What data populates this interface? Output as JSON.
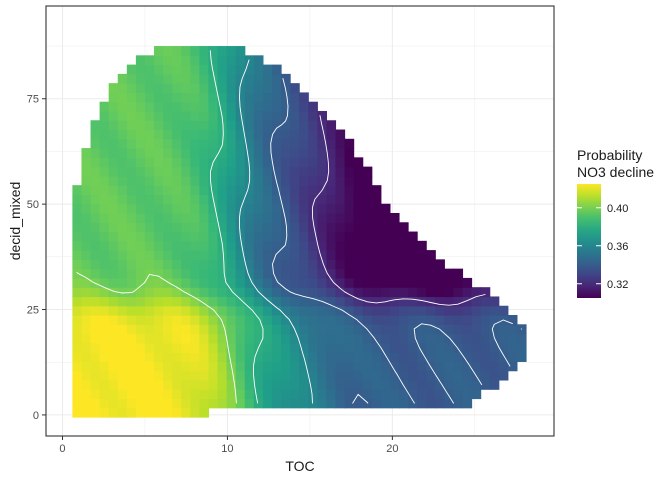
{
  "chart_data": {
    "type": "heatmap",
    "title": "",
    "xlabel": "TOC",
    "ylabel": "decid_mixed",
    "xlim": [
      -1,
      29.8
    ],
    "ylim": [
      -5,
      97
    ],
    "x_ticks": [
      0,
      10,
      20
    ],
    "x_tick_labels": [
      "0",
      "10",
      "20"
    ],
    "y_ticks": [
      0,
      25,
      50,
      75
    ],
    "y_tick_labels": [
      "0",
      "25",
      "50",
      "75"
    ],
    "grid": true,
    "theme": "bw",
    "colorscale": "viridis",
    "legend": {
      "title_lines": [
        "Probability",
        "NO3 decline"
      ],
      "placement": "right",
      "range": [
        0.305,
        0.425
      ],
      "breaks": [
        0.32,
        0.36,
        0.4
      ],
      "break_labels": [
        "0.32",
        "0.36",
        "0.40"
      ]
    },
    "fill_description": "Probability of NO3 decline over TOC and decid_mixed; highest (~0.42) at low TOC and low decid_mixed, lowest (~0.305) at TOC 19-24 with decid_mixed 35-60",
    "region_outline": [
      [
        0.6,
        -0.5
      ],
      [
        9.1,
        -0.5
      ],
      [
        9.1,
        1.5
      ],
      [
        24.6,
        1.5
      ],
      [
        26.5,
        8
      ],
      [
        28.3,
        14
      ],
      [
        28.3,
        20
      ],
      [
        26.5,
        28
      ],
      [
        23,
        36
      ],
      [
        20,
        48
      ],
      [
        17,
        68
      ],
      [
        13,
        82
      ],
      [
        10,
        88
      ],
      [
        5.5,
        87
      ],
      [
        3.3,
        81
      ],
      [
        1.8,
        68
      ],
      [
        0.6,
        50
      ],
      [
        0.6,
        -0.5
      ]
    ],
    "contour_levels": [
      0.32,
      0.34,
      0.36,
      0.38,
      0.4
    ],
    "contour_color": "#ffffff"
  }
}
